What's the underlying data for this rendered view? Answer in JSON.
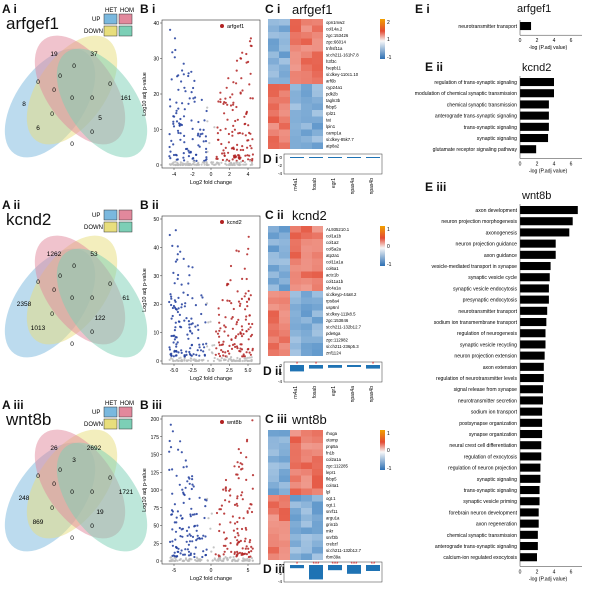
{
  "colors": {
    "venn_blue": "#7ab8de",
    "venn_pink": "#e2889c",
    "venn_yellow": "#e8de7c",
    "venn_teal": "#7ccfb6",
    "up": "#b22222",
    "down": "#1f3c9c",
    "bar": "#1f73b4",
    "heat_hi": "#e34a33",
    "heat_lo": "#3a7fbf",
    "sig": "#d7191c"
  },
  "panels": {
    "A_i": "A i",
    "A_ii": "A ii",
    "A_iii": "A iii",
    "B_i": "B i",
    "B_ii": "B ii",
    "B_iii": "B iii",
    "C_i": "C i",
    "C_ii": "C ii",
    "C_iii": "C iii",
    "D_i": "D i",
    "D_ii": "D ii",
    "D_iii": "D iii",
    "E_i": "E i",
    "E_ii": "E ii",
    "E_iii": "E iii"
  },
  "venn_legend": {
    "het": "HET",
    "hom": "HOM",
    "up": "UP",
    "down": "DOWN"
  },
  "venns": [
    {
      "gene": "arfgef1",
      "counts": {
        "a": "8",
        "b": "19",
        "c": "37",
        "d": "161",
        "ab": "0",
        "bc": "0",
        "cd": "0",
        "ad": "6",
        "bd": "0",
        "ac": "5",
        "abc": "0",
        "abd": "0",
        "bcd": "0",
        "acd": "0",
        "abcd": "0",
        "mid": "0"
      }
    },
    {
      "gene": "kcnd2",
      "counts": {
        "a": "2358",
        "b": "1262",
        "c": "53",
        "d": "61",
        "ab": "0",
        "bc": "0",
        "cd": "0",
        "ad": "1013",
        "bd": "0",
        "ac": "122",
        "abc": "0",
        "abd": "0",
        "bcd": "0",
        "acd": "0",
        "abcd": "0",
        "mid": "0"
      }
    },
    {
      "gene": "wnt8b",
      "counts": {
        "a": "248",
        "b": "26",
        "c": "2692",
        "d": "1721",
        "ab": "0",
        "bc": "3",
        "cd": "0",
        "ad": "869",
        "bd": "0",
        "ac": "19",
        "abc": "0",
        "abd": "0",
        "bcd": "0",
        "acd": "0",
        "abcd": "0",
        "mid": "0"
      }
    }
  ],
  "volcanos": [
    {
      "legend": "arfgef1",
      "xlabel": "Log2 fold change",
      "ylabel": "Log10 adj p-value",
      "xticks": [
        "-4",
        "-2",
        "0",
        "2",
        "4"
      ],
      "yticks": [
        "0",
        "10",
        "20",
        "30",
        "40"
      ]
    },
    {
      "legend": "kcnd2",
      "xlabel": "Log2 fold change",
      "ylabel": "Log10 adj p-value",
      "xticks": [
        "-5.0",
        "-2.5",
        "0.0",
        "2.5",
        "5.0"
      ],
      "yticks": [
        "0",
        "10",
        "20",
        "30",
        "40",
        "50"
      ]
    },
    {
      "legend": "wnt8b",
      "xlabel": "Log2 fold change",
      "ylabel": "Log10 adj p-value",
      "xticks": [
        "-5",
        "0",
        "5"
      ],
      "yticks": [
        "0",
        "25",
        "50",
        "75",
        "100",
        "125",
        "150",
        "175",
        "200"
      ]
    }
  ],
  "heatmaps": [
    {
      "title": "arfgef1",
      "genes": [
        "opn1mw2",
        "col14a.2",
        "zgc:153426",
        "zgc:66014",
        "tnfrsf11a",
        "si:ch211-161h7.8",
        "h3f3c",
        "fsepb11",
        "si:dkey-110c1.10",
        "arf6b",
        "cyp24a1",
        "pdk2b",
        "tagln3b",
        "fkbp5",
        "rpl21",
        "tat",
        "lpin1",
        "camp1a",
        "si:dkey-85k7.7",
        "atp8a2"
      ],
      "n_up": 10,
      "cb_top": "2",
      "cb_mid": "1",
      "cb_bot": "-1"
    },
    {
      "title": "kcnd2",
      "genes": [
        "AL935210.1",
        "col1a1b",
        "col1a2",
        "col5a2a",
        "atp2a1",
        "col11a1a",
        "col6a1",
        "actc1b",
        "col11a1b",
        "slc4a1a",
        "si:dkeyp-44a8.2",
        "rps8a4",
        "usp6nl",
        "si:dkey-111k8.5",
        "zgc:153846",
        "si:ch211-132b12.7",
        "pde6ga",
        "zgc:112982",
        "si:ch211-236p5.3",
        "znf1124"
      ],
      "n_up": 10,
      "cb_top": "1",
      "cb_mid": "0",
      "cb_bot": "-1"
    },
    {
      "title": "wnt8b",
      "genes": [
        "rhoga",
        "otomp",
        "pnp5a",
        "fn1b",
        "col2a1a",
        "zgc:112285",
        "lepr1",
        "fkbp5",
        "col4a1",
        "lpl",
        "ogt.1",
        "ogt.1",
        "snrf11",
        "argu1a",
        "grin1b",
        "mkr",
        "snrf3b",
        "crebzf",
        "si:ch211-132b12.7",
        "rbm39a"
      ],
      "n_up": 10,
      "cb_top": "1",
      "cb_mid": "0",
      "cb_bot": "-1"
    }
  ],
  "marker_genes": [
    "rn4a1",
    "fosab",
    "egr1",
    "npas4a",
    "npas4b"
  ],
  "bar_panels": [
    {
      "values": [
        -0.2,
        -0.15,
        -0.05,
        -0.1,
        -0.18
      ],
      "sig": [
        "",
        "",
        "",
        "",
        ""
      ],
      "yticks": [
        "0",
        "-2",
        "-4"
      ]
    },
    {
      "values": [
        -1.6,
        -0.9,
        -0.7,
        -0.5,
        -0.9
      ],
      "sig": [
        "*",
        "*",
        "",
        "",
        "*"
      ],
      "yticks": [
        "0",
        "-2",
        "-4"
      ]
    },
    {
      "values": [
        -0.8,
        -3.6,
        -1.3,
        -2.2,
        -1.5
      ],
      "sig": [
        "*",
        "***",
        "***",
        "***",
        "**"
      ],
      "yticks": [
        "0",
        "-2",
        "-4"
      ]
    }
  ],
  "go": [
    {
      "title": "arfgef1",
      "xlabel": "-log (P.adj value)",
      "xticks": [
        "0",
        "2",
        "4",
        "6"
      ],
      "terms": [
        {
          "name": "neurotransmitter transport",
          "value": 1.3
        }
      ]
    },
    {
      "title": "kcnd2",
      "xlabel": "-log (P.adj value)",
      "xticks": [
        "0",
        "2",
        "4",
        "6"
      ],
      "terms": [
        {
          "name": "regulation of trans-synaptic signaling",
          "value": 4.0
        },
        {
          "name": "modulation of chemical synaptic transmission",
          "value": 4.0
        },
        {
          "name": "chemical synaptic transmission",
          "value": 3.4
        },
        {
          "name": "anterograde trans-synaptic signaling",
          "value": 3.4
        },
        {
          "name": "trans-synaptic signaling",
          "value": 3.4
        },
        {
          "name": "synaptic signaling",
          "value": 3.3
        },
        {
          "name": "glutamate receptor signaling pathway",
          "value": 1.9
        }
      ]
    },
    {
      "title": "wnt8b",
      "xlabel": "-log (P.adj value)",
      "xticks": [
        "0",
        "2",
        "4",
        "6"
      ],
      "terms": [
        {
          "name": "axon development",
          "value": 6.8
        },
        {
          "name": "neuron projection morphogenesis",
          "value": 6.2
        },
        {
          "name": "axonogenesis",
          "value": 5.8
        },
        {
          "name": "neuron projection guidance",
          "value": 4.2
        },
        {
          "name": "axon guidance",
          "value": 4.2
        },
        {
          "name": "vesicle-mediated transport in synapse",
          "value": 3.6
        },
        {
          "name": "synaptic vesicle cycle",
          "value": 3.5
        },
        {
          "name": "synaptic vesicle endocytosis",
          "value": 3.4
        },
        {
          "name": "presynaptic endocytosis",
          "value": 3.4
        },
        {
          "name": "neurotransmitter transport",
          "value": 3.2
        },
        {
          "name": "sodium ion transmembrane transport",
          "value": 3.1
        },
        {
          "name": "regulation of neurogenesis",
          "value": 3.0
        },
        {
          "name": "synaptic vesicle recycling",
          "value": 3.0
        },
        {
          "name": "neuron projection extension",
          "value": 2.9
        },
        {
          "name": "axon extension",
          "value": 2.8
        },
        {
          "name": "regulation of neurotransmitter levels",
          "value": 2.8
        },
        {
          "name": "signal release from synapse",
          "value": 2.7
        },
        {
          "name": "neurotransmitter secretion",
          "value": 2.7
        },
        {
          "name": "sodium ion transport",
          "value": 2.6
        },
        {
          "name": "postsynapse organization",
          "value": 2.6
        },
        {
          "name": "synapse organization",
          "value": 2.6
        },
        {
          "name": "neural crest cell differentiation",
          "value": 2.5
        },
        {
          "name": "regulation of exocytosis",
          "value": 2.5
        },
        {
          "name": "regulation of neuron projection",
          "value": 2.4
        },
        {
          "name": "synaptic signaling",
          "value": 2.4
        },
        {
          "name": "trans-synaptic signaling",
          "value": 2.3
        },
        {
          "name": "synaptic vesicle priming",
          "value": 2.3
        },
        {
          "name": "forebrain neuron development",
          "value": 2.2
        },
        {
          "name": "axon regeneration",
          "value": 2.2
        },
        {
          "name": "chemical synaptic transmission",
          "value": 2.1
        },
        {
          "name": "anterograde trans-synaptic signaling",
          "value": 2.1
        },
        {
          "name": "calcium-ion regulated exocytosis",
          "value": 2.0
        }
      ]
    }
  ]
}
